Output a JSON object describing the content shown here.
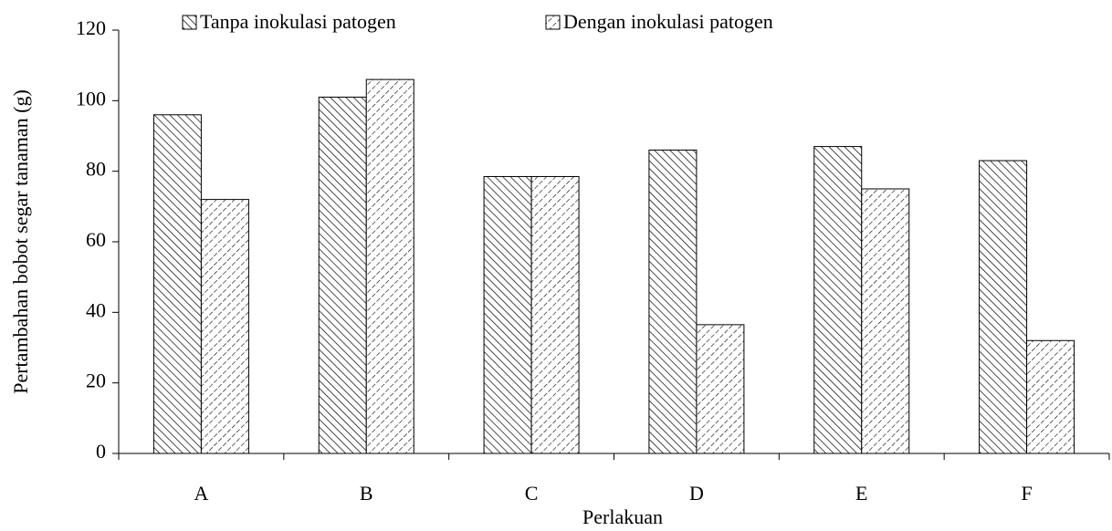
{
  "chart_data": {
    "type": "bar",
    "y_label": "Pertambahan bobot segar tanaman (g)",
    "x_label": "Perlakuan",
    "categories": [
      "A",
      "B",
      "C",
      "D",
      "E",
      "F"
    ],
    "series": [
      {
        "name": "Tanpa inokulasi patogen",
        "color": "#000000",
        "hatch": "backslash",
        "values": [
          96,
          101,
          78.5,
          86,
          87,
          83
        ]
      },
      {
        "name": "Dengan inokulasi patogen",
        "color": "#000000",
        "hatch": "slash",
        "values": [
          72,
          106,
          78.5,
          36.5,
          75,
          32
        ]
      }
    ],
    "ylim": [
      0,
      120
    ],
    "yticks": [
      0,
      20,
      40,
      60,
      80,
      100,
      120
    ],
    "grid": false
  }
}
